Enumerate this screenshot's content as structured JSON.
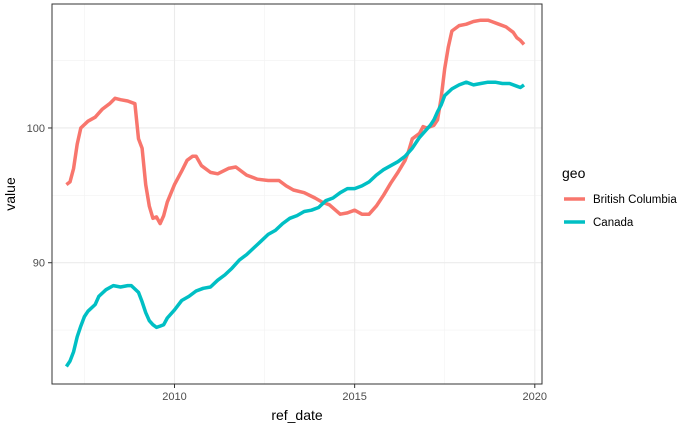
{
  "chart_data": {
    "type": "line",
    "xlabel": "ref_date",
    "ylabel": "value",
    "xlim": [
      2006.6,
      2020.2
    ],
    "ylim": [
      81.0,
      109.2
    ],
    "x_ticks": [
      2010,
      2015,
      2020
    ],
    "y_ticks": [
      90,
      100
    ],
    "x_minor_ticks": [
      2007.5,
      2012.5,
      2017.5
    ],
    "y_minor_ticks": [
      85,
      95,
      105
    ],
    "grid": true,
    "legend": {
      "title": "geo",
      "position": "right"
    },
    "series": [
      {
        "name": "British Columbia",
        "color": "#F8766D",
        "points": [
          [
            2007.0,
            95.8
          ],
          [
            2007.1,
            96.0
          ],
          [
            2007.2,
            97.0
          ],
          [
            2007.3,
            98.8
          ],
          [
            2007.4,
            100.0
          ],
          [
            2007.6,
            100.5
          ],
          [
            2007.8,
            100.8
          ],
          [
            2008.0,
            101.4
          ],
          [
            2008.2,
            101.8
          ],
          [
            2008.35,
            102.2
          ],
          [
            2008.5,
            102.1
          ],
          [
            2008.7,
            102.0
          ],
          [
            2008.9,
            101.8
          ],
          [
            2009.0,
            99.2
          ],
          [
            2009.1,
            98.5
          ],
          [
            2009.2,
            95.8
          ],
          [
            2009.3,
            94.2
          ],
          [
            2009.4,
            93.3
          ],
          [
            2009.5,
            93.4
          ],
          [
            2009.6,
            92.9
          ],
          [
            2009.7,
            93.5
          ],
          [
            2009.8,
            94.5
          ],
          [
            2010.0,
            95.8
          ],
          [
            2010.2,
            96.8
          ],
          [
            2010.35,
            97.6
          ],
          [
            2010.5,
            97.9
          ],
          [
            2010.6,
            97.9
          ],
          [
            2010.75,
            97.2
          ],
          [
            2011.0,
            96.7
          ],
          [
            2011.2,
            96.6
          ],
          [
            2011.5,
            97.0
          ],
          [
            2011.7,
            97.1
          ],
          [
            2012.0,
            96.5
          ],
          [
            2012.3,
            96.2
          ],
          [
            2012.6,
            96.1
          ],
          [
            2012.9,
            96.1
          ],
          [
            2013.1,
            95.7
          ],
          [
            2013.3,
            95.4
          ],
          [
            2013.6,
            95.2
          ],
          [
            2013.9,
            94.8
          ],
          [
            2014.1,
            94.5
          ],
          [
            2014.3,
            94.3
          ],
          [
            2014.6,
            93.6
          ],
          [
            2014.8,
            93.7
          ],
          [
            2015.0,
            93.9
          ],
          [
            2015.2,
            93.6
          ],
          [
            2015.4,
            93.6
          ],
          [
            2015.6,
            94.2
          ],
          [
            2015.8,
            95.0
          ],
          [
            2016.0,
            95.9
          ],
          [
            2016.2,
            96.7
          ],
          [
            2016.4,
            97.6
          ],
          [
            2016.5,
            98.3
          ],
          [
            2016.6,
            99.2
          ],
          [
            2016.8,
            99.6
          ],
          [
            2016.9,
            100.1
          ],
          [
            2017.0,
            100.0
          ],
          [
            2017.2,
            100.2
          ],
          [
            2017.3,
            100.6
          ],
          [
            2017.4,
            102.2
          ],
          [
            2017.5,
            104.4
          ],
          [
            2017.6,
            106.0
          ],
          [
            2017.7,
            107.2
          ],
          [
            2017.9,
            107.6
          ],
          [
            2018.1,
            107.7
          ],
          [
            2018.3,
            107.9
          ],
          [
            2018.5,
            108.0
          ],
          [
            2018.7,
            108.0
          ],
          [
            2018.8,
            107.9
          ],
          [
            2019.0,
            107.7
          ],
          [
            2019.2,
            107.5
          ],
          [
            2019.4,
            107.1
          ],
          [
            2019.5,
            106.7
          ],
          [
            2019.6,
            106.5
          ],
          [
            2019.7,
            106.2
          ]
        ]
      },
      {
        "name": "Canada",
        "color": "#00BFC4",
        "points": [
          [
            2007.0,
            82.3
          ],
          [
            2007.1,
            82.7
          ],
          [
            2007.2,
            83.4
          ],
          [
            2007.3,
            84.5
          ],
          [
            2007.4,
            85.3
          ],
          [
            2007.5,
            86.0
          ],
          [
            2007.6,
            86.4
          ],
          [
            2007.8,
            86.9
          ],
          [
            2007.9,
            87.5
          ],
          [
            2008.1,
            88.0
          ],
          [
            2008.3,
            88.3
          ],
          [
            2008.5,
            88.2
          ],
          [
            2008.7,
            88.3
          ],
          [
            2008.8,
            88.3
          ],
          [
            2009.0,
            87.8
          ],
          [
            2009.1,
            87.1
          ],
          [
            2009.2,
            86.3
          ],
          [
            2009.3,
            85.7
          ],
          [
            2009.4,
            85.4
          ],
          [
            2009.5,
            85.2
          ],
          [
            2009.6,
            85.3
          ],
          [
            2009.7,
            85.4
          ],
          [
            2009.8,
            85.9
          ],
          [
            2010.0,
            86.5
          ],
          [
            2010.2,
            87.2
          ],
          [
            2010.4,
            87.5
          ],
          [
            2010.6,
            87.9
          ],
          [
            2010.8,
            88.1
          ],
          [
            2011.0,
            88.2
          ],
          [
            2011.2,
            88.7
          ],
          [
            2011.4,
            89.1
          ],
          [
            2011.6,
            89.6
          ],
          [
            2011.8,
            90.2
          ],
          [
            2012.0,
            90.6
          ],
          [
            2012.2,
            91.1
          ],
          [
            2012.4,
            91.6
          ],
          [
            2012.6,
            92.1
          ],
          [
            2012.8,
            92.4
          ],
          [
            2013.0,
            92.9
          ],
          [
            2013.2,
            93.3
          ],
          [
            2013.4,
            93.5
          ],
          [
            2013.6,
            93.8
          ],
          [
            2013.8,
            93.9
          ],
          [
            2014.0,
            94.1
          ],
          [
            2014.2,
            94.6
          ],
          [
            2014.4,
            94.8
          ],
          [
            2014.6,
            95.2
          ],
          [
            2014.8,
            95.5
          ],
          [
            2015.0,
            95.5
          ],
          [
            2015.2,
            95.7
          ],
          [
            2015.4,
            96.0
          ],
          [
            2015.6,
            96.5
          ],
          [
            2015.8,
            96.9
          ],
          [
            2016.0,
            97.2
          ],
          [
            2016.2,
            97.5
          ],
          [
            2016.4,
            97.9
          ],
          [
            2016.6,
            98.5
          ],
          [
            2016.8,
            99.3
          ],
          [
            2017.0,
            99.9
          ],
          [
            2017.1,
            100.2
          ],
          [
            2017.2,
            100.6
          ],
          [
            2017.3,
            101.2
          ],
          [
            2017.4,
            101.7
          ],
          [
            2017.5,
            102.4
          ],
          [
            2017.7,
            102.9
          ],
          [
            2017.9,
            103.2
          ],
          [
            2018.1,
            103.4
          ],
          [
            2018.3,
            103.2
          ],
          [
            2018.5,
            103.3
          ],
          [
            2018.7,
            103.4
          ],
          [
            2018.9,
            103.4
          ],
          [
            2019.1,
            103.3
          ],
          [
            2019.3,
            103.3
          ],
          [
            2019.5,
            103.1
          ],
          [
            2019.6,
            103.0
          ],
          [
            2019.7,
            103.2
          ]
        ]
      }
    ]
  }
}
